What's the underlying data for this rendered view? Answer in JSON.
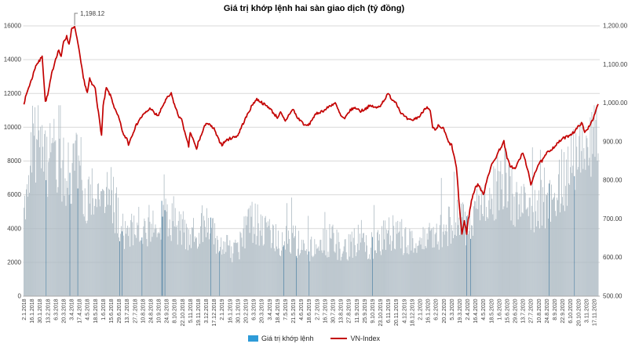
{
  "title": "Giá trị khớp lệnh hai sàn giao dịch (tỷ đồng)",
  "annotation": {
    "label": "1,198.12",
    "t": 6.4,
    "value": 1198.12
  },
  "legend": {
    "volume_label": "Giá trị khớp lệnh",
    "vnindex_label": "VN-Index"
  },
  "colors": {
    "bar": "#adbac3",
    "bar_accent": "#4e7e9e",
    "line": "#c30000",
    "legend_bar_swatch": "#2e9bd8",
    "grid": "#d9d9d9",
    "axis_line": "#a9a9a9",
    "axis_text": "#404040",
    "annotation_leader": "#808080"
  },
  "chart_data": {
    "type": "bar+line combo",
    "title": "Giá trị khớp lệnh hai sàn giao dịch (tỷ đồng)",
    "grid": "horizontal",
    "legend_position": "bottom",
    "points_per_category": 10,
    "n_points": 726,
    "categories": [
      "2.1.2018",
      "16.1.2018",
      "30.1.2018",
      "13.2.2018",
      "6.3.2018",
      "20.3.2018",
      "3.4.2018",
      "17.4.2018",
      "4.5.2018",
      "18.5.2018",
      "1.6.2018",
      "15.6.2018",
      "29.6.2018",
      "13.7.2018",
      "27.7.2018",
      "10.8.2018",
      "24.8.2018",
      "10.9.2018",
      "24.9.2018",
      "8.10.2018",
      "22.10.2018",
      "5.11.2018",
      "19.11.2018",
      "3.12.2018",
      "17.12.2018",
      "2.1.2019",
      "16.1.2019",
      "30.1.2019",
      "20.2.2019",
      "6.3.2019",
      "20.3.2019",
      "3.4.2019",
      "18.4.2019",
      "7.5.2019",
      "21.5.2019",
      "4.6.2019",
      "18.6.2019",
      "2.7.2019",
      "16.7.2019",
      "30.7.2019",
      "13.8.2019",
      "27.8.2019",
      "11.9.2019",
      "25.9.2019",
      "9.10.2019",
      "23.10.2019",
      "6.11.2019",
      "20.11.2019",
      "4.12.2019",
      "18.12.2019",
      "2.1.2020",
      "16.1.2020",
      "6.2.2020",
      "20.2.2020",
      "5.3.2020",
      "19.3.2020",
      "2.4.2020",
      "16.4.2020",
      "4.5.2020",
      "18.5.2020",
      "1.6.2020",
      "15.6.2020",
      "29.6.2020",
      "13.7.2020",
      "27.7.2020",
      "10.8.2020",
      "24.8.2020",
      "8.9.2020",
      "22.9.2020",
      "6.10.2020",
      "20.10.2020",
      "3.11.2020",
      "17.11.2020"
    ],
    "left_axis": {
      "ticks": [
        0,
        2000,
        4000,
        6000,
        8000,
        10000,
        12000,
        14000,
        16000
      ],
      "range": [
        0,
        16000
      ]
    },
    "right_axis": {
      "tick_labels": [
        "500.00",
        "600.00",
        "700.00",
        "800.00",
        "900.00",
        "1,000.00",
        "1,100.00",
        "1,200.00"
      ],
      "ticks": [
        500,
        600,
        700,
        800,
        900,
        1000,
        1100,
        1200
      ],
      "range": [
        500,
        1200
      ]
    },
    "series": [
      {
        "name": "Giá trị khớp lệnh",
        "type": "bar",
        "axis": "left",
        "unit": "tỷ đồng",
        "keypoints": [
          [
            0,
            5200
          ],
          [
            0.5,
            7400
          ],
          [
            1,
            8600
          ],
          [
            1.5,
            9400
          ],
          [
            2,
            9000
          ],
          [
            2.5,
            8000
          ],
          [
            3,
            7600
          ],
          [
            3.5,
            8300
          ],
          [
            4,
            8400
          ],
          [
            4.5,
            7700
          ],
          [
            5,
            7500
          ],
          [
            5.5,
            7100
          ],
          [
            6,
            7000
          ],
          [
            6.5,
            8500
          ],
          [
            7,
            7900
          ],
          [
            7.5,
            6400
          ],
          [
            8,
            5700
          ],
          [
            8.5,
            5100
          ],
          [
            9,
            5000
          ],
          [
            9.5,
            5500
          ],
          [
            10,
            5500
          ],
          [
            10.5,
            6200
          ],
          [
            11,
            6200
          ],
          [
            11.5,
            5300
          ],
          [
            12,
            4700
          ],
          [
            12.5,
            4000
          ],
          [
            13,
            3700
          ],
          [
            14,
            3900
          ],
          [
            14.5,
            4200
          ],
          [
            15,
            4100
          ],
          [
            16,
            3900
          ],
          [
            17,
            4200
          ],
          [
            17.5,
            4500
          ],
          [
            18,
            4600
          ],
          [
            19,
            4600
          ],
          [
            19.5,
            4200
          ],
          [
            20,
            4000
          ],
          [
            21,
            3800
          ],
          [
            21.5,
            3600
          ],
          [
            22,
            3500
          ],
          [
            22.5,
            4200
          ],
          [
            23,
            4400
          ],
          [
            23.5,
            3800
          ],
          [
            24,
            3500
          ],
          [
            24.5,
            3000
          ],
          [
            25,
            2800
          ],
          [
            26,
            3000
          ],
          [
            26.5,
            2500
          ],
          [
            27,
            2700
          ],
          [
            27.5,
            3600
          ],
          [
            28,
            4100
          ],
          [
            28.5,
            4500
          ],
          [
            29,
            4400
          ],
          [
            30,
            4000
          ],
          [
            31,
            3800
          ],
          [
            31.5,
            3400
          ],
          [
            32,
            3200
          ],
          [
            33,
            3000
          ],
          [
            33.5,
            3400
          ],
          [
            34,
            3400
          ],
          [
            35,
            3000
          ],
          [
            35.5,
            2800
          ],
          [
            36,
            2800
          ],
          [
            37,
            3100
          ],
          [
            38,
            3200
          ],
          [
            39,
            3400
          ],
          [
            39.5,
            3100
          ],
          [
            40,
            2900
          ],
          [
            41,
            2900
          ],
          [
            41.5,
            3200
          ],
          [
            42,
            3300
          ],
          [
            42.5,
            3600
          ],
          [
            43,
            3200
          ],
          [
            44,
            3000
          ],
          [
            44.5,
            3200
          ],
          [
            45,
            3300
          ],
          [
            46,
            3700
          ],
          [
            46.5,
            3800
          ],
          [
            47,
            3600
          ],
          [
            48,
            3300
          ],
          [
            49,
            3100
          ],
          [
            50,
            3000
          ],
          [
            50.5,
            3200
          ],
          [
            51,
            3300
          ],
          [
            52,
            3700
          ],
          [
            53,
            4000
          ],
          [
            54,
            4300
          ],
          [
            55,
            4500
          ],
          [
            55.5,
            4300
          ],
          [
            56,
            4100
          ],
          [
            56.5,
            4700
          ],
          [
            57,
            5000
          ],
          [
            58,
            5100
          ],
          [
            58.5,
            5500
          ],
          [
            59,
            5800
          ],
          [
            59.5,
            6200
          ],
          [
            60,
            6600
          ],
          [
            60.5,
            7000
          ],
          [
            61,
            7100
          ],
          [
            61.5,
            6100
          ],
          [
            62,
            5600
          ],
          [
            63,
            5200
          ],
          [
            64,
            5000
          ],
          [
            65,
            5300
          ],
          [
            66,
            5500
          ],
          [
            67,
            6000
          ],
          [
            67.5,
            6300
          ],
          [
            68,
            6600
          ],
          [
            68.5,
            7000
          ],
          [
            69,
            7400
          ],
          [
            69.5,
            7900
          ],
          [
            70,
            8200
          ],
          [
            70.5,
            8500
          ],
          [
            71,
            8800
          ],
          [
            71.5,
            9300
          ],
          [
            72,
            9800
          ],
          [
            72.5,
            10700
          ]
        ]
      },
      {
        "name": "VN-Index",
        "type": "line",
        "axis": "right",
        "keypoints": [
          [
            0,
            1000
          ],
          [
            0.5,
            1035
          ],
          [
            1,
            1063
          ],
          [
            1.5,
            1098
          ],
          [
            2,
            1110
          ],
          [
            2.3,
            1124
          ],
          [
            2.7,
            1003
          ],
          [
            3,
            1020
          ],
          [
            3.5,
            1075
          ],
          [
            4,
            1115
          ],
          [
            4.4,
            1138
          ],
          [
            4.7,
            1118
          ],
          [
            5,
            1160
          ],
          [
            5.4,
            1172
          ],
          [
            5.7,
            1152
          ],
          [
            6,
            1190
          ],
          [
            6.4,
            1198.12
          ],
          [
            6.7,
            1168
          ],
          [
            7,
            1130
          ],
          [
            7.5,
            1065
          ],
          [
            8,
            1026
          ],
          [
            8.3,
            1062
          ],
          [
            8.6,
            1048
          ],
          [
            9,
            1040
          ],
          [
            9.4,
            975
          ],
          [
            9.8,
            916
          ],
          [
            10,
            992
          ],
          [
            10.4,
            1039
          ],
          [
            11,
            1016
          ],
          [
            11.5,
            983
          ],
          [
            12,
            960
          ],
          [
            12.6,
            915
          ],
          [
            13,
            909
          ],
          [
            13.2,
            893
          ],
          [
            13.6,
            915
          ],
          [
            14,
            935
          ],
          [
            14.5,
            955
          ],
          [
            15,
            968
          ],
          [
            15.5,
            978
          ],
          [
            16,
            987
          ],
          [
            16.5,
            972
          ],
          [
            17,
            968
          ],
          [
            17.5,
            992
          ],
          [
            18,
            1011
          ],
          [
            18.6,
            1024
          ],
          [
            19,
            996
          ],
          [
            19.5,
            968
          ],
          [
            20,
            953
          ],
          [
            20.4,
            915
          ],
          [
            20.8,
            888
          ],
          [
            21,
            925
          ],
          [
            21.4,
            903
          ],
          [
            21.8,
            880
          ],
          [
            22,
            898
          ],
          [
            22.5,
            922
          ],
          [
            23,
            950
          ],
          [
            23.5,
            942
          ],
          [
            24,
            933
          ],
          [
            24.5,
            908
          ],
          [
            25,
            892
          ],
          [
            25.5,
            903
          ],
          [
            26,
            908
          ],
          [
            26.5,
            912
          ],
          [
            27,
            916
          ],
          [
            27.5,
            940
          ],
          [
            28,
            961
          ],
          [
            28.5,
            982
          ],
          [
            29,
            1001
          ],
          [
            29.4,
            1010
          ],
          [
            30,
            1002
          ],
          [
            30.5,
            994
          ],
          [
            31,
            988
          ],
          [
            31.5,
            974
          ],
          [
            32,
            963
          ],
          [
            32.4,
            975
          ],
          [
            33,
            952
          ],
          [
            33.5,
            972
          ],
          [
            34,
            984
          ],
          [
            34.5,
            962
          ],
          [
            35,
            954
          ],
          [
            35.5,
            941
          ],
          [
            36,
            944
          ],
          [
            36.5,
            962
          ],
          [
            37,
            973
          ],
          [
            37.5,
            978
          ],
          [
            38,
            982
          ],
          [
            38.5,
            991
          ],
          [
            39,
            997
          ],
          [
            39.3,
            1000
          ],
          [
            40,
            967
          ],
          [
            40.5,
            958
          ],
          [
            41,
            977
          ],
          [
            41.5,
            986
          ],
          [
            42,
            987
          ],
          [
            42.5,
            979
          ],
          [
            43,
            984
          ],
          [
            43.5,
            991
          ],
          [
            44,
            992
          ],
          [
            44.5,
            987
          ],
          [
            45,
            994
          ],
          [
            45.5,
            1009
          ],
          [
            46,
            1024
          ],
          [
            46.5,
            1009
          ],
          [
            47,
            1002
          ],
          [
            47.5,
            978
          ],
          [
            48,
            966
          ],
          [
            48.5,
            957
          ],
          [
            49,
            955
          ],
          [
            49.5,
            961
          ],
          [
            50,
            966
          ],
          [
            50.6,
            986
          ],
          [
            50.9,
            991
          ],
          [
            51.3,
            978
          ],
          [
            51.6,
            936
          ],
          [
            52,
            928
          ],
          [
            52.3,
            941
          ],
          [
            53,
            933
          ],
          [
            53.6,
            898
          ],
          [
            54,
            891
          ],
          [
            54.6,
            834
          ],
          [
            55,
            726
          ],
          [
            55.3,
            661
          ],
          [
            55.6,
            694
          ],
          [
            55.9,
            663
          ],
          [
            56,
            685
          ],
          [
            56.5,
            747
          ],
          [
            57,
            783
          ],
          [
            57.4,
            789
          ],
          [
            58,
            762
          ],
          [
            58.5,
            806
          ],
          [
            59,
            837
          ],
          [
            59.5,
            856
          ],
          [
            60,
            878
          ],
          [
            60.6,
            900
          ],
          [
            61,
            857
          ],
          [
            61.4,
            838
          ],
          [
            62,
            829
          ],
          [
            62.5,
            852
          ],
          [
            63,
            871
          ],
          [
            63.6,
            829
          ],
          [
            64,
            786
          ],
          [
            64.4,
            815
          ],
          [
            65,
            843
          ],
          [
            65.5,
            852
          ],
          [
            66,
            870
          ],
          [
            66.5,
            879
          ],
          [
            67,
            888
          ],
          [
            67.5,
            898
          ],
          [
            68,
            908
          ],
          [
            68.5,
            912
          ],
          [
            69,
            919
          ],
          [
            69.5,
            926
          ],
          [
            70,
            939
          ],
          [
            70.4,
            950
          ],
          [
            70.8,
            924
          ],
          [
            71,
            928
          ],
          [
            71.5,
            946
          ],
          [
            72,
            966
          ],
          [
            72.3,
            985
          ],
          [
            72.5,
            998
          ]
        ]
      }
    ]
  }
}
